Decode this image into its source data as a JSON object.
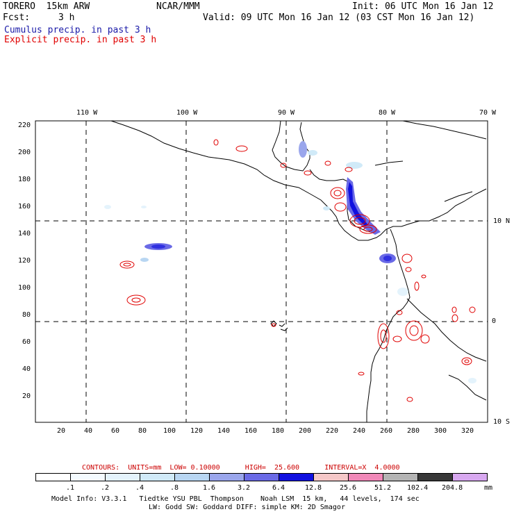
{
  "header": {
    "model_line": "TORERO  15km ARW",
    "org": "NCAR/MMM",
    "init": "Init: 06 UTC Mon 16 Jan 12",
    "fcst_label": "Fcst:",
    "fcst_value": "3 h",
    "valid": "Valid: 09 UTC Mon 16 Jan 12 (03 CST Mon 16 Jan 12)",
    "cumulus": "Cumulus precip. in past 3 h",
    "explicit": "Explicit precip. in past 3 h",
    "colors": {
      "cumulus": "#1a1aa8",
      "explicit": "#e00000"
    }
  },
  "map": {
    "top_lon_labels": [
      "110 W",
      "100 W",
      "90 W",
      "80 W",
      "70 W"
    ],
    "right_lat_labels": [
      "10 N",
      "0",
      "10 S"
    ],
    "left_ticks": [
      "220",
      "200",
      "180",
      "160",
      "140",
      "120",
      "100",
      "80",
      "60",
      "40",
      "20"
    ],
    "bottom_ticks": [
      "20",
      "40",
      "60",
      "80",
      "100",
      "120",
      "140",
      "160",
      "180",
      "200",
      "220",
      "240",
      "260",
      "280",
      "300",
      "320"
    ]
  },
  "contour_info": {
    "text": "CONTOURS:  UNITS=mm  LOW= 0.10000      HIGH=  25.600      INTERVAL=X  4.0000",
    "color": "#cc0000"
  },
  "colorbar": {
    "colors": [
      "#ffffff",
      "#f4fbff",
      "#e4f3fc",
      "#d0eaf8",
      "#b8d6f2",
      "#9aa6ec",
      "#6a6ae6",
      "#1010e0",
      "#f5c8c8",
      "#f088b8",
      "#b4b4b4",
      "#383838",
      "#d8a8f0"
    ],
    "labels": [
      ".1",
      ".2",
      ".4",
      ".8",
      "1.6",
      "3.2",
      "6.4",
      "12.8",
      "25.6",
      "51.2",
      "102.4",
      "204.8"
    ],
    "units": "mm"
  },
  "footer": {
    "line1": "Model Info: V3.3.1   Tiedtke YSU PBL  Thompson    Noah LSM  15 km,   44 levels,  174 sec",
    "line2": "LW: Godd SW: Goddard DIFF: simple KM: 2D Smagor"
  }
}
